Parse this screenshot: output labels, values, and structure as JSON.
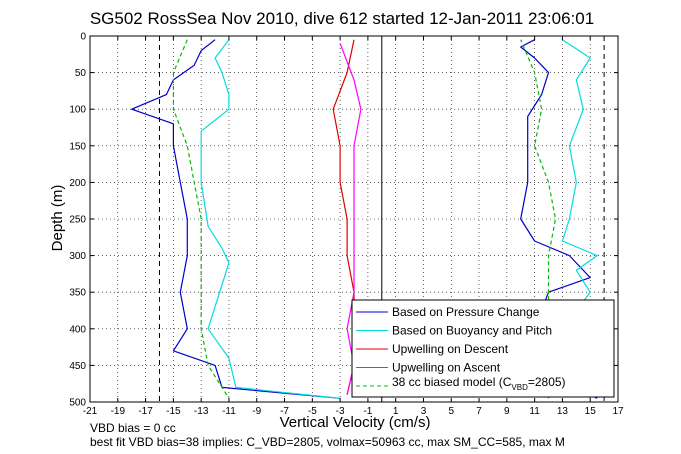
{
  "chart_data": {
    "type": "line",
    "title": "SG502 RossSea Nov 2010, dive 612 started 12-Jan-2011 23:06:01",
    "xlabel": "Vertical Velocity (cm/s)",
    "ylabel": "Depth (m)",
    "xlim": [
      -21,
      17
    ],
    "ylim": [
      0,
      500
    ],
    "y_reversed": true,
    "grid": true,
    "x_ticks": [
      "-21",
      "-19",
      "-17",
      "-15",
      "-13",
      "-11",
      "-9",
      "-7",
      "-5",
      "-3",
      "-1",
      "1",
      "3",
      "5",
      "7",
      "9",
      "11",
      "13",
      "15",
      "17"
    ],
    "y_ticks": [
      "0",
      "50",
      "100",
      "150",
      "200",
      "250",
      "300",
      "350",
      "400",
      "450",
      "500"
    ],
    "legend_placement": "bottom-right",
    "reference_lines": [
      {
        "x": 0,
        "style": "solid",
        "color": "#000000"
      },
      {
        "x": -16,
        "style": "dashed",
        "color": "#000000"
      },
      {
        "x": 16,
        "style": "dashed",
        "color": "#000000"
      }
    ],
    "series": [
      {
        "name": "Based on Pressure Change",
        "color": "#0000cc",
        "style": "solid",
        "descent": {
          "depth": [
            5,
            20,
            40,
            60,
            80,
            100,
            120,
            150,
            200,
            250,
            300,
            350,
            400,
            430,
            450,
            480,
            495
          ],
          "w": [
            -12,
            -13,
            -13.5,
            -15,
            -15.5,
            -18,
            -15,
            -15,
            -14.5,
            -14,
            -14,
            -14.5,
            -14,
            -15,
            -12,
            -11.5,
            -3
          ]
        },
        "ascent": {
          "depth": [
            495,
            470,
            440,
            400,
            350,
            330,
            300,
            280,
            250,
            200,
            150,
            110,
            80,
            50,
            30,
            15,
            5
          ],
          "w": [
            15.5,
            13,
            11,
            11,
            12,
            15,
            13.5,
            11,
            10,
            10.5,
            10.5,
            10.5,
            11.5,
            12,
            11,
            10,
            11
          ]
        }
      },
      {
        "name": "Based on Buoyancy and Pitch",
        "color": "#00dddd",
        "style": "solid",
        "descent": {
          "depth": [
            5,
            30,
            50,
            80,
            100,
            130,
            160,
            200,
            260,
            290,
            310,
            400,
            440,
            480,
            495
          ],
          "w": [
            -11,
            -12,
            -11.5,
            -11,
            -11,
            -13,
            -13,
            -13,
            -12.5,
            -11.5,
            -11,
            -12.5,
            -11,
            -10.5,
            -3
          ]
        },
        "ascent": {
          "depth": [
            495,
            470,
            440,
            400,
            350,
            320,
            300,
            280,
            250,
            200,
            150,
            100,
            60,
            30,
            5
          ],
          "w": [
            15,
            14,
            14,
            13,
            15,
            14,
            15.5,
            13,
            13.5,
            14,
            13.5,
            14.5,
            14,
            15,
            13
          ]
        }
      },
      {
        "name": "Upwelling on Descent",
        "color": "#dd0000",
        "style": "solid",
        "descent": {
          "depth": [
            5,
            50,
            100,
            150,
            200,
            250,
            300,
            350,
            400,
            450,
            490
          ],
          "w": [
            -2,
            -2.5,
            -3.5,
            -3,
            -3,
            -2.5,
            -2.5,
            -2,
            -2,
            -2,
            -2.5
          ]
        }
      },
      {
        "name": "Upwelling on Ascent",
        "color": "#ff00ff",
        "style": "solid",
        "ascent": {
          "depth": [
            490,
            450,
            400,
            350,
            300,
            250,
            200,
            150,
            100,
            60,
            10
          ],
          "w": [
            -2.5,
            -2,
            -2.5,
            -2,
            -2,
            -2,
            -2,
            -2,
            -1.5,
            -2,
            -3
          ]
        }
      },
      {
        "name": "38 cc biased model (C_VBD=2805)",
        "color": "#00bb00",
        "style": "dashed",
        "descent": {
          "depth": [
            5,
            50,
            100,
            150,
            200,
            250,
            300,
            350,
            400,
            450,
            495
          ],
          "w": [
            -14,
            -15,
            -15,
            -14,
            -13.5,
            -13,
            -13,
            -13,
            -13,
            -12.5,
            -11
          ]
        },
        "ascent": {
          "depth": [
            495,
            450,
            400,
            350,
            300,
            250,
            200,
            150,
            100,
            50,
            5
          ],
          "w": [
            12,
            12,
            12,
            12,
            12,
            12.5,
            12,
            11,
            11.5,
            11,
            10
          ]
        }
      }
    ]
  },
  "legend": {
    "items": [
      {
        "label": "Based on Pressure Change",
        "color": "#0000cc",
        "dash": false
      },
      {
        "label": "Based on Buoyancy and Pitch",
        "color": "#00dddd",
        "dash": false
      },
      {
        "label": "Upwelling on Descent",
        "color": "#dd0000",
        "dash": false
      },
      {
        "label": "Upwelling on Ascent",
        "color": "#ff00ff",
        "dash": false
      }
    ],
    "model_label_prefix": "38 cc biased model (C",
    "model_label_sub": "VBD",
    "model_label_suffix": "=2805)",
    "model_color": "#00bb00"
  },
  "footer": {
    "line1": "VBD bias = 0 cc",
    "line2": "best fit VBD bias=38 implies: C_VBD=2805, volmax=50963 cc, max SM_CC=585, max M"
  }
}
